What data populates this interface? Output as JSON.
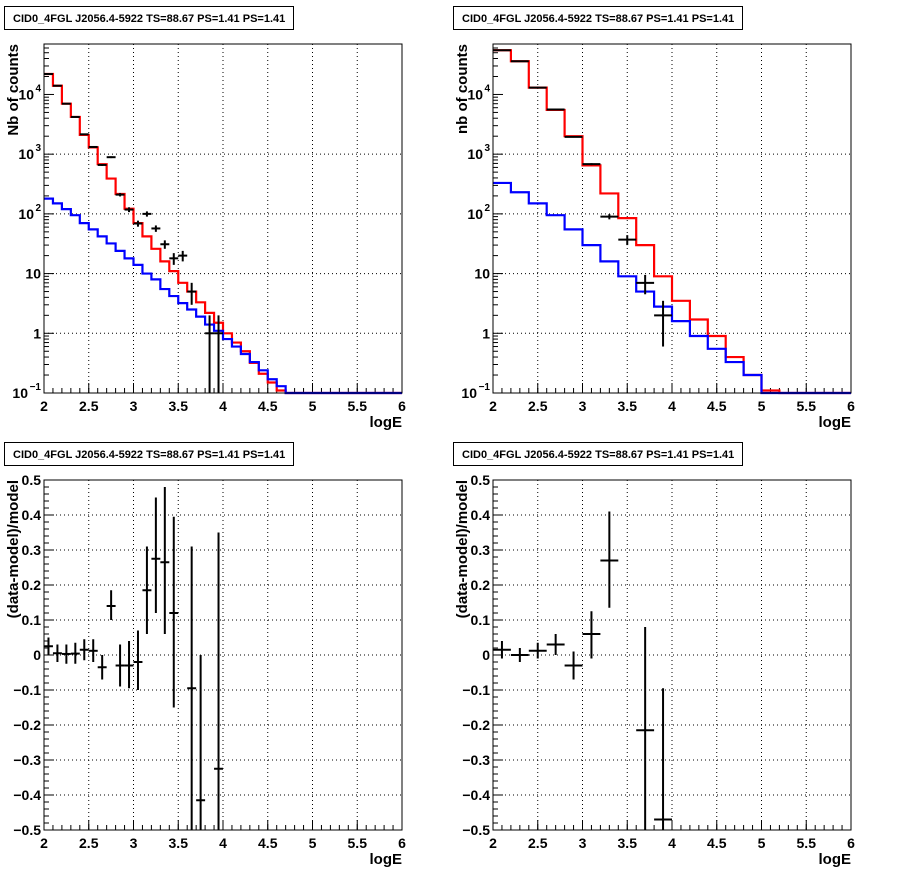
{
  "chart_data": [
    {
      "type": "line",
      "title": "CID0_4FGL J2056.4-5922 TS=88.67 PS=1.41 PS=1.41",
      "xlabel": "logE",
      "ylabel": "Nb of counts",
      "ylog": true,
      "xlim": [
        2,
        6
      ],
      "ylim": [
        0.1,
        70000
      ],
      "xticks": [
        "2",
        "2.5",
        "3",
        "3.5",
        "4",
        "4.5",
        "5",
        "5.5",
        "6"
      ],
      "yticks": [
        {
          "value": 0.1,
          "label": "10",
          "exp": "−1"
        },
        {
          "value": 1,
          "label": "1",
          "exp": ""
        },
        {
          "value": 10,
          "label": "10",
          "exp": ""
        },
        {
          "value": 100,
          "label": "10",
          "exp": "2"
        },
        {
          "value": 1000,
          "label": "10",
          "exp": "3"
        },
        {
          "value": 10000,
          "label": "10",
          "exp": "4"
        }
      ],
      "grid": true,
      "bin_edges": [
        2.0,
        2.1,
        2.2,
        2.3,
        2.4,
        2.5,
        2.6,
        2.7,
        2.8,
        2.9,
        3.0,
        3.1,
        3.2,
        3.3,
        3.4,
        3.5,
        3.6,
        3.7,
        3.8,
        3.9,
        4.0,
        4.1,
        4.2,
        4.3,
        4.4,
        4.5,
        4.6,
        4.7,
        4.8,
        4.9,
        5.0,
        5.1,
        5.2,
        5.3,
        5.4,
        5.5,
        5.6,
        5.7,
        5.8,
        5.9,
        6.0
      ],
      "series": [
        {
          "color": "#ff0000",
          "style": "step",
          "values": [
            22000,
            14000,
            7000,
            4200,
            2100,
            1300,
            680,
            390,
            215,
            122,
            70,
            42,
            26,
            16,
            11,
            7,
            5,
            3.3,
            2.2,
            1.5,
            1.0,
            0.7,
            0.5,
            0.32,
            0.21,
            0.15,
            0.11,
            0.1,
            0.1,
            0.1,
            0.1,
            0.1,
            0.1,
            0.1,
            0.1,
            0.1,
            0.1,
            0.1,
            0.1,
            0.1
          ]
        },
        {
          "color": "#0000ff",
          "style": "step",
          "values": [
            180,
            150,
            120,
            95,
            70,
            55,
            42,
            32,
            24,
            18,
            14,
            10,
            8,
            5.5,
            4.2,
            3.2,
            2.5,
            1.9,
            1.4,
            1.1,
            0.8,
            0.6,
            0.45,
            0.33,
            0.24,
            0.17,
            0.13,
            0.1,
            0.1,
            0.1,
            0.1,
            0.1,
            0.1,
            0.1,
            0.1,
            0.1,
            0.1,
            0.1,
            0.1,
            0.1
          ]
        },
        {
          "color": "#000000",
          "style": "points",
          "points": [
            {
              "x": 2.05,
              "y": 22000,
              "ylo": 21800,
              "yhi": 22200
            },
            {
              "x": 2.15,
              "y": 14000,
              "ylo": 13850,
              "yhi": 14150
            },
            {
              "x": 2.25,
              "y": 7000,
              "ylo": 6900,
              "yhi": 7100
            },
            {
              "x": 2.35,
              "y": 4200,
              "ylo": 4130,
              "yhi": 4270
            },
            {
              "x": 2.45,
              "y": 2150,
              "ylo": 2100,
              "yhi": 2200
            },
            {
              "x": 2.55,
              "y": 1320,
              "ylo": 1280,
              "yhi": 1360
            },
            {
              "x": 2.65,
              "y": 660,
              "ylo": 635,
              "yhi": 685
            },
            {
              "x": 2.75,
              "y": 890,
              "ylo": 860,
              "yhi": 920
            },
            {
              "x": 2.85,
              "y": 210,
              "ylo": 196,
              "yhi": 224
            },
            {
              "x": 2.95,
              "y": 118,
              "ylo": 107,
              "yhi": 129
            },
            {
              "x": 3.05,
              "y": 69,
              "ylo": 61,
              "yhi": 77
            },
            {
              "x": 3.15,
              "y": 100,
              "ylo": 90,
              "yhi": 110
            },
            {
              "x": 3.25,
              "y": 57,
              "ylo": 50,
              "yhi": 64
            },
            {
              "x": 3.35,
              "y": 31,
              "ylo": 26,
              "yhi": 36
            },
            {
              "x": 3.45,
              "y": 18,
              "ylo": 14,
              "yhi": 22
            },
            {
              "x": 3.55,
              "y": 20,
              "ylo": 16,
              "yhi": 24
            },
            {
              "x": 3.65,
              "y": 5,
              "ylo": 3,
              "yhi": 7
            },
            {
              "x": 3.85,
              "y": 1,
              "ylo": 0.1,
              "yhi": 2
            },
            {
              "x": 3.95,
              "y": 1,
              "ylo": 0.1,
              "yhi": 2
            }
          ]
        }
      ]
    },
    {
      "type": "line",
      "title": "CID0_4FGL J2056.4-5922 TS=88.67 PS=1.41 PS=1.41",
      "xlabel": "logE",
      "ylabel": "nb of counts",
      "ylog": true,
      "xlim": [
        2,
        6
      ],
      "ylim": [
        0.1,
        70000
      ],
      "xticks": [
        "2",
        "2.5",
        "3",
        "3.5",
        "4",
        "4.5",
        "5",
        "5.5",
        "6"
      ],
      "yticks": [
        {
          "value": 0.1,
          "label": "10",
          "exp": "−1"
        },
        {
          "value": 1,
          "label": "1",
          "exp": ""
        },
        {
          "value": 10,
          "label": "10",
          "exp": ""
        },
        {
          "value": 100,
          "label": "10",
          "exp": "2"
        },
        {
          "value": 1000,
          "label": "10",
          "exp": "3"
        },
        {
          "value": 10000,
          "label": "10",
          "exp": "4"
        }
      ],
      "grid": true,
      "bin_edges": [
        2.0,
        2.2,
        2.4,
        2.6,
        2.8,
        3.0,
        3.2,
        3.4,
        3.6,
        3.8,
        4.0,
        4.2,
        4.4,
        4.6,
        4.8,
        5.0,
        5.2,
        5.4,
        5.6,
        5.8,
        6.0
      ],
      "series": [
        {
          "color": "#ff0000",
          "style": "step",
          "values": [
            55000,
            36000,
            13000,
            5500,
            2000,
            650,
            220,
            85,
            30,
            9,
            3.5,
            1.7,
            0.9,
            0.4,
            0.2,
            0.11,
            0.1,
            0.1,
            0.1,
            0.1
          ]
        },
        {
          "color": "#0000ff",
          "style": "step",
          "values": [
            330,
            230,
            150,
            95,
            55,
            30,
            16,
            9,
            5,
            2.8,
            1.6,
            0.9,
            0.55,
            0.33,
            0.2,
            0.1,
            0.1,
            0.1,
            0.1,
            0.1
          ]
        },
        {
          "color": "#000000",
          "style": "points",
          "points": [
            {
              "x": 2.1,
              "y": 55000,
              "ylo": 54700,
              "yhi": 55300
            },
            {
              "x": 2.3,
              "y": 36000,
              "ylo": 35700,
              "yhi": 36300
            },
            {
              "x": 2.5,
              "y": 13000,
              "ylo": 12850,
              "yhi": 13150
            },
            {
              "x": 2.7,
              "y": 5600,
              "ylo": 5500,
              "yhi": 5700
            },
            {
              "x": 2.9,
              "y": 1950,
              "ylo": 1900,
              "yhi": 2000
            },
            {
              "x": 3.1,
              "y": 680,
              "ylo": 655,
              "yhi": 705
            },
            {
              "x": 3.3,
              "y": 90,
              "ylo": 81,
              "yhi": 99
            },
            {
              "x": 3.5,
              "y": 37,
              "ylo": 30,
              "yhi": 44
            },
            {
              "x": 3.7,
              "y": 7,
              "ylo": 4.5,
              "yhi": 9.5
            },
            {
              "x": 3.9,
              "y": 2,
              "ylo": 0.6,
              "yhi": 3.5
            }
          ]
        }
      ]
    },
    {
      "type": "scatter",
      "title": "CID0_4FGL J2056.4-5922 TS=88.67 PS=1.41 PS=1.41",
      "xlabel": "logE",
      "ylabel": "(data-model)/model",
      "ylog": false,
      "xlim": [
        2,
        6
      ],
      "ylim": [
        -0.5,
        0.5
      ],
      "xticks": [
        "2",
        "2.5",
        "3",
        "3.5",
        "4",
        "4.5",
        "5",
        "5.5",
        "6"
      ],
      "yticks": [
        {
          "value": -0.5,
          "label": "−0.5"
        },
        {
          "value": -0.4,
          "label": "−0.4"
        },
        {
          "value": -0.3,
          "label": "−0.3"
        },
        {
          "value": -0.2,
          "label": "−0.2"
        },
        {
          "value": -0.1,
          "label": "−0.1"
        },
        {
          "value": 0,
          "label": "0"
        },
        {
          "value": 0.1,
          "label": "0.1"
        },
        {
          "value": 0.2,
          "label": "0.2"
        },
        {
          "value": 0.3,
          "label": "0.3"
        },
        {
          "value": 0.4,
          "label": "0.4"
        },
        {
          "value": 0.5,
          "label": "0.5"
        }
      ],
      "grid": true,
      "xerr": 0.05,
      "series": [
        {
          "color": "#000000",
          "style": "points",
          "points": [
            {
              "x": 2.05,
              "y": 0.025,
              "ylo": 0.0,
              "yhi": 0.05
            },
            {
              "x": 2.15,
              "y": 0.005,
              "ylo": -0.02,
              "yhi": 0.03
            },
            {
              "x": 2.25,
              "y": 0.003,
              "ylo": -0.025,
              "yhi": 0.03
            },
            {
              "x": 2.35,
              "y": 0.004,
              "ylo": -0.025,
              "yhi": 0.035
            },
            {
              "x": 2.45,
              "y": 0.015,
              "ylo": -0.015,
              "yhi": 0.045
            },
            {
              "x": 2.55,
              "y": 0.012,
              "ylo": -0.02,
              "yhi": 0.045
            },
            {
              "x": 2.65,
              "y": -0.035,
              "ylo": -0.07,
              "yhi": 0.0
            },
            {
              "x": 2.75,
              "y": 0.14,
              "ylo": 0.1,
              "yhi": 0.185
            },
            {
              "x": 2.85,
              "y": -0.03,
              "ylo": -0.09,
              "yhi": 0.03
            },
            {
              "x": 2.95,
              "y": -0.03,
              "ylo": -0.095,
              "yhi": 0.04
            },
            {
              "x": 3.05,
              "y": -0.02,
              "ylo": -0.1,
              "yhi": 0.07
            },
            {
              "x": 3.15,
              "y": 0.185,
              "ylo": 0.06,
              "yhi": 0.31
            },
            {
              "x": 3.25,
              "y": 0.275,
              "ylo": 0.12,
              "yhi": 0.45
            },
            {
              "x": 3.35,
              "y": 0.265,
              "ylo": 0.06,
              "yhi": 0.48
            },
            {
              "x": 3.45,
              "y": 0.12,
              "ylo": -0.15,
              "yhi": 0.395
            },
            {
              "x": 3.65,
              "y": -0.095,
              "ylo": -0.5,
              "yhi": 0.31
            },
            {
              "x": 3.75,
              "y": -0.415,
              "ylo": -0.5,
              "yhi": 0.0
            },
            {
              "x": 3.95,
              "y": -0.325,
              "ylo": -0.5,
              "yhi": 0.35
            }
          ]
        }
      ]
    },
    {
      "type": "scatter",
      "title": "CID0_4FGL J2056.4-5922 TS=88.67 PS=1.41 PS=1.41",
      "xlabel": "logE",
      "ylabel": "(data-model)/model",
      "ylog": false,
      "xlim": [
        2,
        6
      ],
      "ylim": [
        -0.5,
        0.5
      ],
      "xticks": [
        "2",
        "2.5",
        "3",
        "3.5",
        "4",
        "4.5",
        "5",
        "5.5",
        "6"
      ],
      "yticks": [
        {
          "value": -0.5,
          "label": "−0.5"
        },
        {
          "value": -0.4,
          "label": "−0.4"
        },
        {
          "value": -0.3,
          "label": "−0.3"
        },
        {
          "value": -0.2,
          "label": "−0.2"
        },
        {
          "value": -0.1,
          "label": "−0.1"
        },
        {
          "value": 0,
          "label": "0"
        },
        {
          "value": 0.1,
          "label": "0.1"
        },
        {
          "value": 0.2,
          "label": "0.2"
        },
        {
          "value": 0.3,
          "label": "0.3"
        },
        {
          "value": 0.4,
          "label": "0.4"
        },
        {
          "value": 0.5,
          "label": "0.5"
        }
      ],
      "grid": true,
      "xerr": 0.1,
      "series": [
        {
          "color": "#000000",
          "style": "points",
          "points": [
            {
              "x": 2.1,
              "y": 0.015,
              "ylo": -0.01,
              "yhi": 0.04
            },
            {
              "x": 2.3,
              "y": 0.0,
              "ylo": -0.02,
              "yhi": 0.02
            },
            {
              "x": 2.5,
              "y": 0.012,
              "ylo": -0.01,
              "yhi": 0.035
            },
            {
              "x": 2.7,
              "y": 0.03,
              "ylo": 0.0,
              "yhi": 0.06
            },
            {
              "x": 2.9,
              "y": -0.03,
              "ylo": -0.07,
              "yhi": 0.01
            },
            {
              "x": 3.1,
              "y": 0.06,
              "ylo": -0.01,
              "yhi": 0.125
            },
            {
              "x": 3.3,
              "y": 0.27,
              "ylo": 0.135,
              "yhi": 0.41
            },
            {
              "x": 3.7,
              "y": -0.215,
              "ylo": -0.5,
              "yhi": 0.08
            },
            {
              "x": 3.9,
              "y": -0.47,
              "ylo": -0.5,
              "yhi": -0.095
            }
          ]
        }
      ]
    }
  ]
}
